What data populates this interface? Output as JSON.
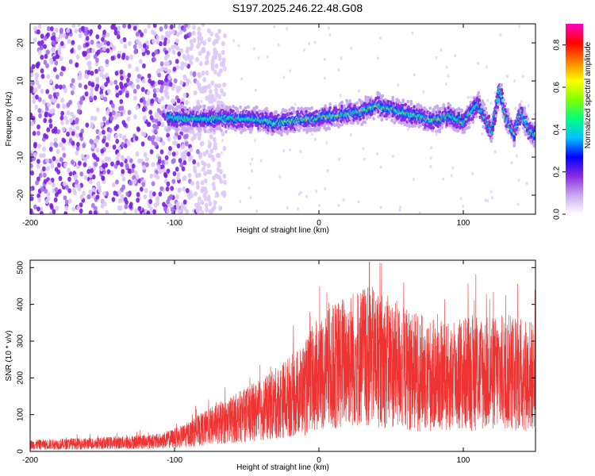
{
  "title": "S197.2025.246.22.48.G08",
  "chart_data": [
    {
      "type": "heatmap",
      "title": "S197.2025.246.22.48.G08",
      "xlabel": "Height of straight line (km)",
      "ylabel": "Frequency (Hz)",
      "xlim": [
        -200,
        150
      ],
      "ylim": [
        -25,
        25
      ],
      "x_ticks": [
        -200,
        -100,
        0,
        100
      ],
      "y_ticks": [
        20,
        10,
        0,
        -10,
        -20
      ],
      "colorbar": {
        "label": "Normalized spectral amplitude",
        "range": [
          0.0,
          0.9
        ],
        "ticks": [
          0.0,
          0.2,
          0.4,
          0.6,
          0.8
        ],
        "colormap": [
          "#ffffff",
          "#c8a8f0",
          "#8a2be2",
          "#0000ff",
          "#00c0ff",
          "#00ff80",
          "#80ff00",
          "#ffff00",
          "#ff8000",
          "#ff0000",
          "#ff00c0"
        ]
      },
      "ridge": {
        "start_km": -105,
        "frequency_hz_points": [
          [
            -105,
            0.5
          ],
          [
            -90,
            0.0
          ],
          [
            -70,
            0.3
          ],
          [
            -50,
            0.0
          ],
          [
            -30,
            -1.0
          ],
          [
            -10,
            -0.2
          ],
          [
            10,
            0.8
          ],
          [
            30,
            2.0
          ],
          [
            40,
            3.5
          ],
          [
            50,
            2.5
          ],
          [
            60,
            1.5
          ],
          [
            70,
            0.5
          ],
          [
            80,
            -0.5
          ],
          [
            90,
            1.0
          ],
          [
            100,
            -1.0
          ],
          [
            110,
            4.0
          ],
          [
            115,
            0.0
          ],
          [
            120,
            -3.0
          ],
          [
            125,
            8.0
          ],
          [
            130,
            0.0
          ],
          [
            135,
            -4.0
          ],
          [
            140,
            2.0
          ],
          [
            145,
            -3.0
          ],
          [
            150,
            -4.0
          ]
        ]
      },
      "noise_region_km": [
        -200,
        -85
      ]
    },
    {
      "type": "line",
      "xlabel": "Height of straight line (km)",
      "ylabel": "SNR (10 * v/v)",
      "xlim": [
        -200,
        150
      ],
      "ylim": [
        0,
        520
      ],
      "x_ticks": [
        -200,
        -100,
        0,
        100
      ],
      "y_ticks": [
        0,
        100,
        200,
        300,
        400,
        500
      ],
      "color": "#ee3333",
      "trend_points": [
        [
          -200,
          18
        ],
        [
          -150,
          22
        ],
        [
          -110,
          28
        ],
        [
          -95,
          40
        ],
        [
          -85,
          55
        ],
        [
          -70,
          75
        ],
        [
          -50,
          100
        ],
        [
          -35,
          120
        ],
        [
          -20,
          150
        ],
        [
          -10,
          170
        ],
        [
          0,
          210
        ],
        [
          10,
          230
        ],
        [
          20,
          250
        ],
        [
          30,
          260
        ],
        [
          40,
          255
        ],
        [
          50,
          240
        ],
        [
          60,
          225
        ],
        [
          70,
          215
        ],
        [
          80,
          205
        ],
        [
          90,
          200
        ],
        [
          100,
          210
        ],
        [
          110,
          215
        ],
        [
          120,
          210
        ],
        [
          130,
          215
        ],
        [
          140,
          210
        ],
        [
          150,
          205
        ]
      ],
      "peak": [
        35,
        515
      ]
    }
  ]
}
